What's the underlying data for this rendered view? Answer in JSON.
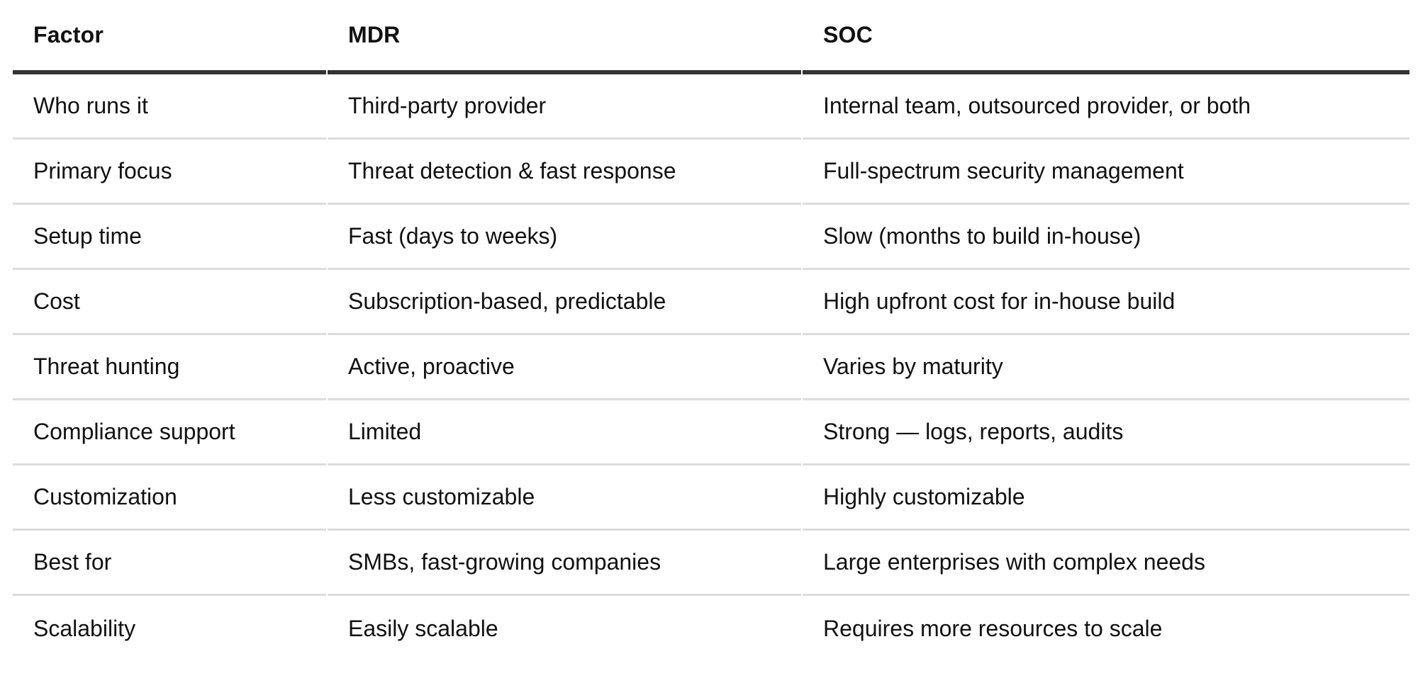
{
  "theme": {
    "background": "#ffffff",
    "text_color": "#111111",
    "header_rule_color": "#333333",
    "divider_color": "#dcdcdc"
  },
  "table": {
    "columns": [
      {
        "label": "Factor"
      },
      {
        "label": "MDR"
      },
      {
        "label": "SOC"
      }
    ],
    "rows": [
      {
        "factor": "Who runs it",
        "mdr": "Third-party provider",
        "soc": "Internal team, outsourced provider, or both"
      },
      {
        "factor": "Primary focus",
        "mdr": "Threat detection & fast response",
        "soc": "Full-spectrum security management"
      },
      {
        "factor": "Setup time",
        "mdr": "Fast (days to weeks)",
        "soc": "Slow (months to build in-house)"
      },
      {
        "factor": "Cost",
        "mdr": "Subscription-based, predictable",
        "soc": "High upfront cost for in-house build"
      },
      {
        "factor": "Threat hunting",
        "mdr": "Active, proactive",
        "soc": "Varies by maturity"
      },
      {
        "factor": "Compliance support",
        "mdr": "Limited",
        "soc": "Strong — logs, reports, audits"
      },
      {
        "factor": "Customization",
        "mdr": "Less customizable",
        "soc": "Highly customizable"
      },
      {
        "factor": "Best for",
        "mdr": "SMBs, fast-growing companies",
        "soc": "Large enterprises with complex needs"
      },
      {
        "factor": "Scalability",
        "mdr": "Easily scalable",
        "soc": "Requires more resources to scale"
      }
    ]
  }
}
